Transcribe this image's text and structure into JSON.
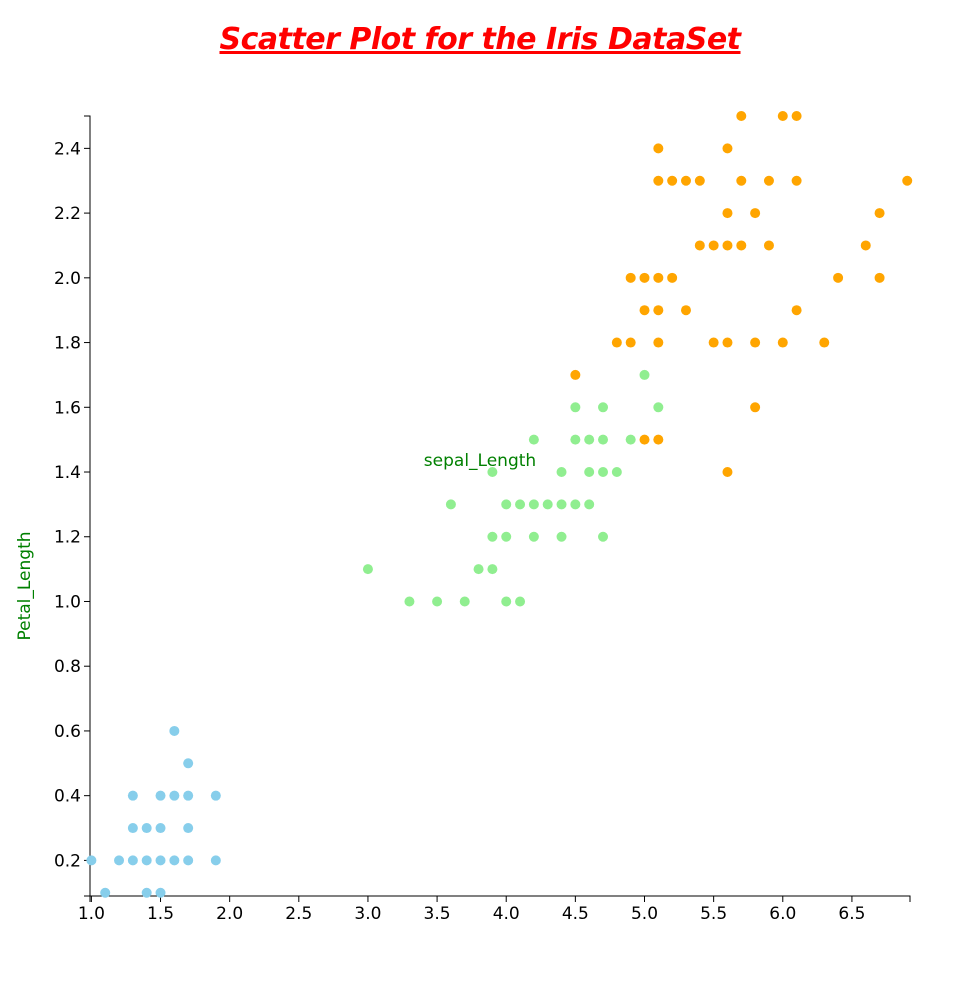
{
  "chart_data": {
    "type": "scatter",
    "title": "Scatter Plot for the Iris DataSet",
    "xlabel": "sepal_Length",
    "ylabel": "Petal_Length",
    "xlim": [
      0.99,
      6.92
    ],
    "ylim": [
      0.09,
      2.5
    ],
    "x_ticks": [
      "1.0",
      "1.5",
      "2.0",
      "2.5",
      "3.0",
      "3.5",
      "4.0",
      "4.5",
      "5.0",
      "5.5",
      "6.0",
      "6.5"
    ],
    "y_ticks": [
      "0.2",
      "0.4",
      "0.6",
      "0.8",
      "1.0",
      "1.2",
      "1.4",
      "1.6",
      "1.8",
      "2.0",
      "2.2",
      "2.4"
    ],
    "grid": false,
    "legend": "none",
    "series": [
      {
        "color": "#87ceeb",
        "points": [
          [
            1.0,
            0.2
          ],
          [
            1.1,
            0.1
          ],
          [
            1.2,
            0.2
          ],
          [
            1.3,
            0.2
          ],
          [
            1.3,
            0.3
          ],
          [
            1.3,
            0.4
          ],
          [
            1.4,
            0.1
          ],
          [
            1.4,
            0.2
          ],
          [
            1.4,
            0.3
          ],
          [
            1.5,
            0.1
          ],
          [
            1.5,
            0.2
          ],
          [
            1.5,
            0.3
          ],
          [
            1.5,
            0.4
          ],
          [
            1.6,
            0.2
          ],
          [
            1.6,
            0.4
          ],
          [
            1.6,
            0.6
          ],
          [
            1.7,
            0.2
          ],
          [
            1.7,
            0.3
          ],
          [
            1.7,
            0.4
          ],
          [
            1.7,
            0.5
          ],
          [
            1.9,
            0.2
          ],
          [
            1.9,
            0.4
          ]
        ]
      },
      {
        "color": "#90ee90",
        "points": [
          [
            3.0,
            1.1
          ],
          [
            3.3,
            1.0
          ],
          [
            3.5,
            1.0
          ],
          [
            3.6,
            1.3
          ],
          [
            3.7,
            1.0
          ],
          [
            3.8,
            1.1
          ],
          [
            3.9,
            1.1
          ],
          [
            3.9,
            1.2
          ],
          [
            3.9,
            1.4
          ],
          [
            4.0,
            1.0
          ],
          [
            4.0,
            1.2
          ],
          [
            4.0,
            1.3
          ],
          [
            4.1,
            1.0
          ],
          [
            4.1,
            1.3
          ],
          [
            4.2,
            1.2
          ],
          [
            4.2,
            1.3
          ],
          [
            4.2,
            1.5
          ],
          [
            4.3,
            1.3
          ],
          [
            4.4,
            1.2
          ],
          [
            4.4,
            1.3
          ],
          [
            4.4,
            1.4
          ],
          [
            4.5,
            1.3
          ],
          [
            4.5,
            1.5
          ],
          [
            4.5,
            1.6
          ],
          [
            4.6,
            1.3
          ],
          [
            4.6,
            1.4
          ],
          [
            4.6,
            1.5
          ],
          [
            4.7,
            1.2
          ],
          [
            4.7,
            1.4
          ],
          [
            4.7,
            1.5
          ],
          [
            4.7,
            1.6
          ],
          [
            4.8,
            1.4
          ],
          [
            4.9,
            1.5
          ],
          [
            5.0,
            1.7
          ],
          [
            5.1,
            1.6
          ]
        ]
      },
      {
        "color": "#ffa500",
        "points": [
          [
            4.5,
            1.7
          ],
          [
            4.8,
            1.8
          ],
          [
            4.9,
            1.8
          ],
          [
            4.9,
            2.0
          ],
          [
            5.0,
            1.5
          ],
          [
            5.0,
            1.9
          ],
          [
            5.0,
            2.0
          ],
          [
            5.1,
            1.5
          ],
          [
            5.1,
            1.8
          ],
          [
            5.1,
            1.9
          ],
          [
            5.1,
            2.0
          ],
          [
            5.1,
            2.3
          ],
          [
            5.1,
            2.4
          ],
          [
            5.2,
            2.0
          ],
          [
            5.2,
            2.3
          ],
          [
            5.3,
            1.9
          ],
          [
            5.3,
            2.3
          ],
          [
            5.4,
            2.1
          ],
          [
            5.4,
            2.3
          ],
          [
            5.5,
            1.8
          ],
          [
            5.5,
            2.1
          ],
          [
            5.6,
            1.4
          ],
          [
            5.6,
            1.8
          ],
          [
            5.6,
            2.1
          ],
          [
            5.6,
            2.2
          ],
          [
            5.6,
            2.4
          ],
          [
            5.7,
            2.1
          ],
          [
            5.7,
            2.3
          ],
          [
            5.7,
            2.5
          ],
          [
            5.8,
            1.6
          ],
          [
            5.8,
            1.8
          ],
          [
            5.8,
            2.2
          ],
          [
            5.9,
            2.1
          ],
          [
            5.9,
            2.3
          ],
          [
            6.0,
            1.8
          ],
          [
            6.0,
            2.5
          ],
          [
            6.1,
            1.9
          ],
          [
            6.1,
            2.3
          ],
          [
            6.1,
            2.5
          ],
          [
            6.3,
            1.8
          ],
          [
            6.4,
            2.0
          ],
          [
            6.6,
            2.1
          ],
          [
            6.7,
            2.0
          ],
          [
            6.7,
            2.2
          ],
          [
            6.9,
            2.3
          ]
        ]
      }
    ]
  }
}
